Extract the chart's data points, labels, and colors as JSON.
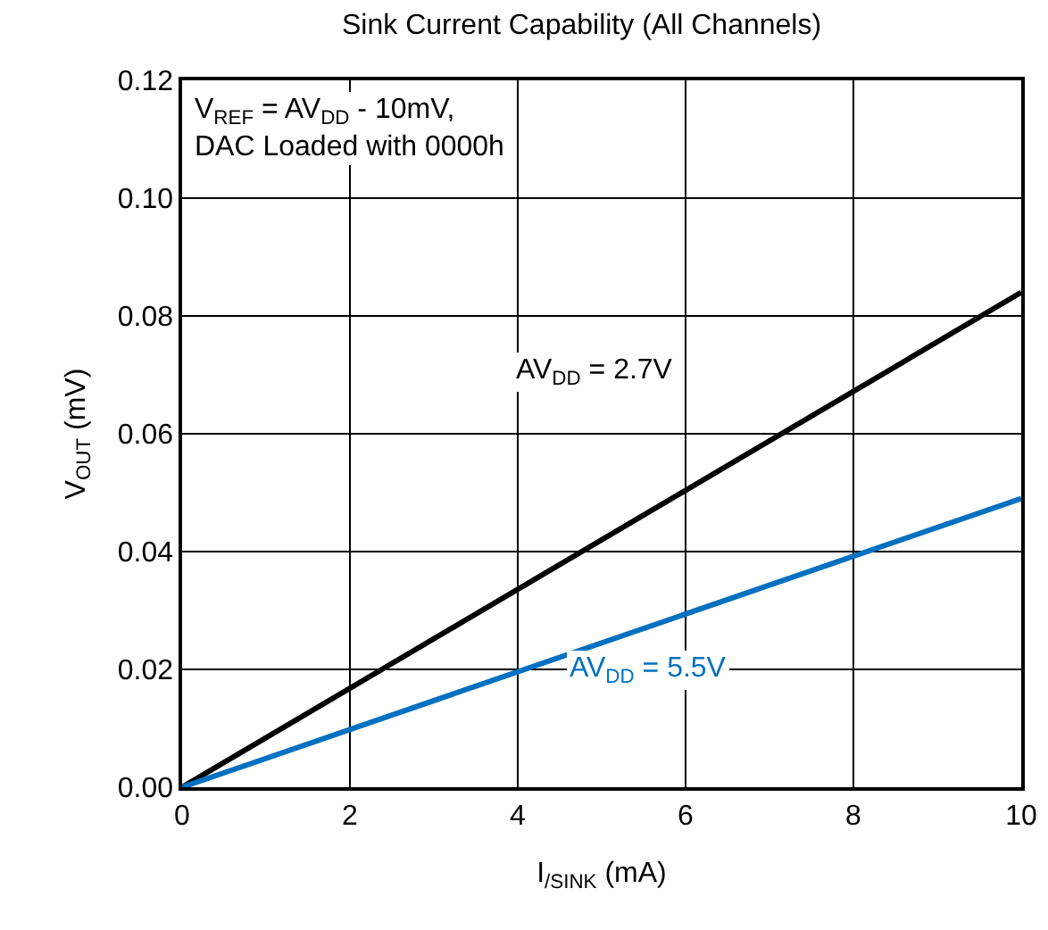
{
  "chart_data": {
    "type": "line",
    "title": "Sink Current Capability (All Channels)",
    "xlabel": "I$_{/SINK}$ (mA)",
    "ylabel": "V$_{OUT}$ (mV)",
    "x": [
      0,
      10
    ],
    "series": [
      {
        "name": "AV$_{DD}$ = 2.7V",
        "color": "#000000",
        "values": [
          0,
          0.084
        ]
      },
      {
        "name": "AV$_{DD}$ = 5.5V",
        "color": "#0070c0",
        "values": [
          0,
          0.049
        ]
      }
    ],
    "xlim": [
      0,
      10
    ],
    "xticks": [
      0,
      2,
      4,
      6,
      8,
      10
    ],
    "ylim": [
      0,
      0.12
    ],
    "yticks": [
      {
        "value": 0,
        "label": "0.00"
      },
      {
        "value": 0.02,
        "label": "0.02"
      },
      {
        "value": 0.04,
        "label": "0.04"
      },
      {
        "value": 0.06,
        "label": "0.06"
      },
      {
        "value": 0.08,
        "label": "0.08"
      },
      {
        "value": 0.1,
        "label": "0.10"
      },
      {
        "value": 0.12,
        "label": "0.12"
      }
    ],
    "annotations": [
      "V$_{REF}$ = AV$_{DD}$ - 10mV,\nDAC Loaded with 0000h"
    ],
    "grid": true,
    "legend": false,
    "marker": "none",
    "line_style": "solid"
  }
}
